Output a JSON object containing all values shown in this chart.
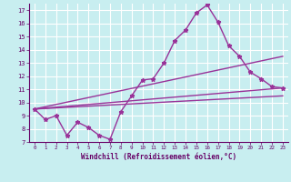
{
  "xlabel": "Windchill (Refroidissement éolien,°C)",
  "bg_color": "#c8eef0",
  "grid_color": "#ffffff",
  "line_color": "#993399",
  "xlim": [
    -0.5,
    23.5
  ],
  "ylim": [
    7,
    17.5
  ],
  "xticks": [
    0,
    1,
    2,
    3,
    4,
    5,
    6,
    7,
    8,
    9,
    10,
    11,
    12,
    13,
    14,
    15,
    16,
    17,
    18,
    19,
    20,
    21,
    22,
    23
  ],
  "yticks": [
    7,
    8,
    9,
    10,
    11,
    12,
    13,
    14,
    15,
    16,
    17
  ],
  "main_x": [
    0,
    1,
    2,
    3,
    4,
    5,
    6,
    7,
    8,
    9,
    10,
    11,
    12,
    13,
    14,
    15,
    16,
    17,
    18,
    19,
    20,
    21,
    22,
    23
  ],
  "main_y": [
    9.5,
    8.7,
    9.0,
    7.5,
    8.5,
    8.1,
    7.5,
    7.2,
    9.3,
    10.5,
    11.7,
    11.8,
    13.0,
    14.7,
    15.5,
    16.8,
    17.4,
    16.1,
    14.3,
    13.5,
    12.3,
    11.8,
    11.2,
    11.1
  ],
  "line2_x": [
    0,
    23
  ],
  "line2_y": [
    9.5,
    13.5
  ],
  "line3_x": [
    0,
    23
  ],
  "line3_y": [
    9.5,
    11.1
  ],
  "line4_x": [
    0,
    23
  ],
  "line4_y": [
    9.5,
    10.5
  ]
}
